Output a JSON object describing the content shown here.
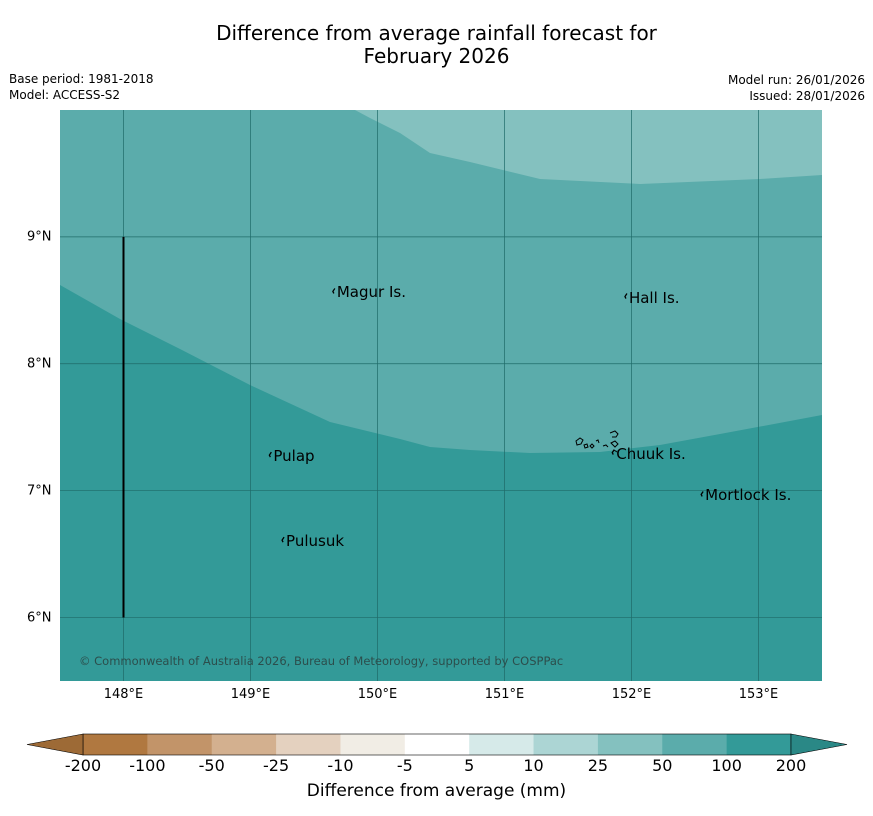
{
  "title": {
    "line1": "Difference from average rainfall forecast for",
    "line2": "February 2026"
  },
  "meta": {
    "base_period": "Base period: 1981-2018",
    "model": "Model: ACCESS-S2",
    "model_run": "Model run: 26/01/2026",
    "issued": "Issued: 28/01/2026"
  },
  "map": {
    "lon_range": [
      147.5,
      153.5
    ],
    "lat_range": [
      5.5,
      10.0
    ],
    "lat_ticks": [
      {
        "value": 9,
        "label": "9°N"
      },
      {
        "value": 8,
        "label": "8°N"
      },
      {
        "value": 7,
        "label": "7°N"
      },
      {
        "value": 6,
        "label": "6°N"
      }
    ],
    "lon_ticks": [
      {
        "value": 148,
        "label": "148°E"
      },
      {
        "value": 149,
        "label": "149°E"
      },
      {
        "value": 150,
        "label": "150°E"
      },
      {
        "value": 151,
        "label": "151°E"
      },
      {
        "value": 152,
        "label": "152°E"
      },
      {
        "value": 153,
        "label": "153°E"
      }
    ],
    "places": [
      {
        "name": "Magur Is.",
        "lon": 149.68,
        "lat": 8.57
      },
      {
        "name": "Hall Is.",
        "lon": 151.98,
        "lat": 8.53
      },
      {
        "name": "Pulap",
        "lon": 149.18,
        "lat": 7.28
      },
      {
        "name": "Chuuk Is.",
        "lon": 151.88,
        "lat": 7.3
      },
      {
        "name": "Mortlock Is.",
        "lon": 152.58,
        "lat": 6.97
      },
      {
        "name": "Pulusuk",
        "lon": 149.28,
        "lat": 6.61
      }
    ],
    "boundary_line": {
      "lon": 148.0,
      "lat_from": 6.0,
      "lat_to": 9.0
    },
    "copyright": "© Commonwealth of Australia 2026, Bureau of Meteorology, supported by COSPPac",
    "zones": [
      {
        "category": "25 to 50",
        "color": "#84c1bf"
      },
      {
        "category": "50 to 100",
        "color": "#5bacab"
      },
      {
        "category": "100 to 200",
        "color": "#339a98"
      }
    ]
  },
  "colorbar": {
    "ticks": [
      "-200",
      "-100",
      "-50",
      "-25",
      "-10",
      "-5",
      "5",
      "10",
      "25",
      "50",
      "100",
      "200"
    ],
    "colors": [
      "#b07840",
      "#c29469",
      "#d3b08f",
      "#e4d1bf",
      "#f1ede5",
      "#ffffff",
      "#d6eae9",
      "#acd5d4",
      "#84c1bf",
      "#5bacab",
      "#339a98"
    ],
    "under_color": "#9d6a36",
    "over_color": "#2a8886",
    "label": "Difference from average (mm)"
  }
}
